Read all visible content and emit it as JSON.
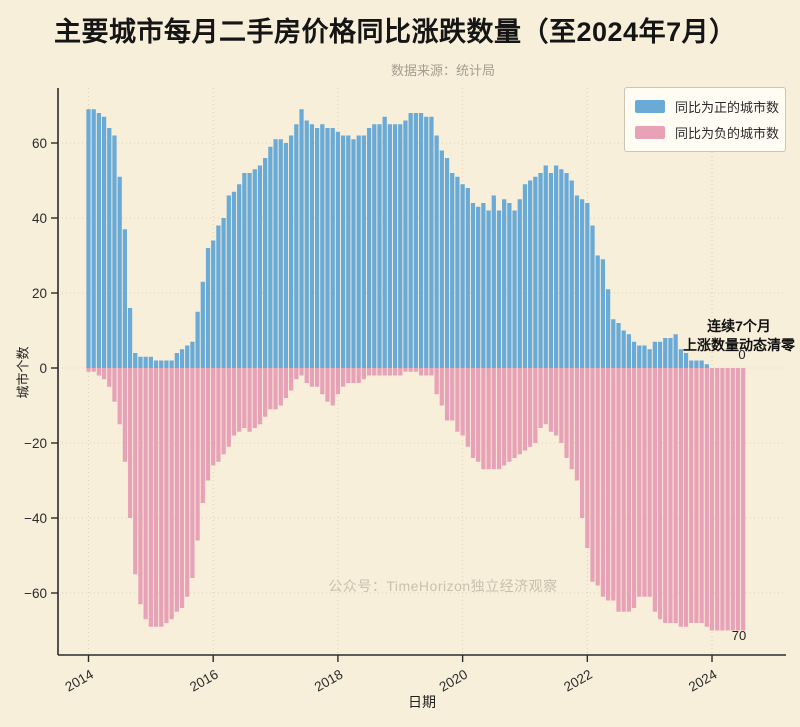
{
  "header": {
    "title": "主要城市每月二手房价格同比涨跌数量（至2024年7月）",
    "subtitle": "数据来源：统计局"
  },
  "watermark": "公众号：TimeHorizon独立经济观察",
  "colors": {
    "background": "#f8efda",
    "positive": "#69aad7",
    "negative": "#e8a2b7",
    "grid": "#dcd2b6",
    "axis": "#2b2b2b"
  },
  "chart_data": {
    "type": "bar",
    "title": "主要城市每月二手房价格同比涨跌数量（至2024年7月）",
    "subtitle": "数据来源：统计局",
    "xlabel": "日期",
    "ylabel": "城市个数",
    "start_month": "2014-01",
    "end_month": "2024-07",
    "months_count": 127,
    "grid": true,
    "legend_position": "upper right",
    "x_tick_labels": [
      "2014",
      "2016",
      "2018",
      "2020",
      "2022",
      "2024"
    ],
    "x_tick_years": [
      2014,
      2016,
      2018,
      2020,
      2022,
      2024
    ],
    "y_ticks": [
      60,
      40,
      20,
      0,
      -20,
      -40,
      -60
    ],
    "ylim": [
      -76,
      75
    ],
    "series": [
      {
        "name": "同比为正的城市数",
        "color": "#69aad7",
        "values": [
          69,
          69,
          68,
          67,
          64,
          62,
          51,
          37,
          16,
          4,
          3,
          3,
          3,
          2,
          2,
          2,
          2,
          4,
          5,
          6,
          7,
          15,
          23,
          32,
          34,
          38,
          40,
          46,
          47,
          49,
          52,
          52,
          53,
          54,
          56,
          59,
          61,
          61,
          60,
          62,
          65,
          69,
          66,
          65,
          64,
          65,
          64,
          64,
          63,
          62,
          62,
          61,
          62,
          62,
          64,
          65,
          65,
          67,
          65,
          65,
          65,
          66,
          68,
          68,
          68,
          67,
          67,
          62,
          58,
          56,
          52,
          51,
          49,
          48,
          44,
          43,
          44,
          42,
          46,
          42,
          45,
          44,
          42,
          45,
          49,
          50,
          51,
          52,
          54,
          52,
          54,
          53,
          52,
          50,
          46,
          45,
          44,
          38,
          30,
          29,
          21,
          13,
          12,
          10,
          9,
          7,
          6,
          6,
          5,
          7,
          7,
          8,
          8,
          9,
          5,
          4,
          2,
          2,
          2,
          1,
          0,
          0,
          0,
          0,
          0,
          0,
          0
        ]
      },
      {
        "name": "同比为负的城市数",
        "color": "#e8a2b7",
        "values": [
          -1,
          -1,
          -2,
          -3,
          -5,
          -9,
          -15,
          -25,
          -40,
          -55,
          -63,
          -67,
          -69,
          -69,
          -69,
          -68,
          -67,
          -65,
          -64,
          -61,
          -56,
          -46,
          -36,
          -30,
          -26,
          -25,
          -23,
          -21,
          -18,
          -17,
          -16,
          -17,
          -16,
          -15,
          -13,
          -11,
          -11,
          -10,
          -8,
          -6,
          -3,
          -2,
          -4,
          -5,
          -5,
          -7,
          -9,
          -10,
          -7,
          -5,
          -4,
          -4,
          -4,
          -3,
          -2,
          -2,
          -2,
          -2,
          -2,
          -2,
          -2,
          -1,
          -1,
          -1,
          -2,
          -2,
          -2,
          -7,
          -10,
          -14,
          -14,
          -17,
          -18,
          -21,
          -24,
          -25,
          -27,
          -27,
          -27,
          -27,
          -26,
          -25,
          -24,
          -23,
          -22,
          -21,
          -20,
          -16,
          -15,
          -17,
          -18,
          -20,
          -24,
          -27,
          -30,
          -40,
          -48,
          -57,
          -58,
          -61,
          -62,
          -62,
          -65,
          -65,
          -65,
          -64,
          -61,
          -61,
          -61,
          -65,
          -67,
          -68,
          -68,
          -68,
          -69,
          -69,
          -68,
          -68,
          -68,
          -69,
          -70,
          -70,
          -70,
          -70,
          -70,
          -70,
          -70
        ]
      }
    ],
    "annotation": {
      "line1": "连续7个月",
      "line2": "上涨数量动态清零",
      "last_positive_label": "0",
      "last_negative_label": "70"
    }
  }
}
